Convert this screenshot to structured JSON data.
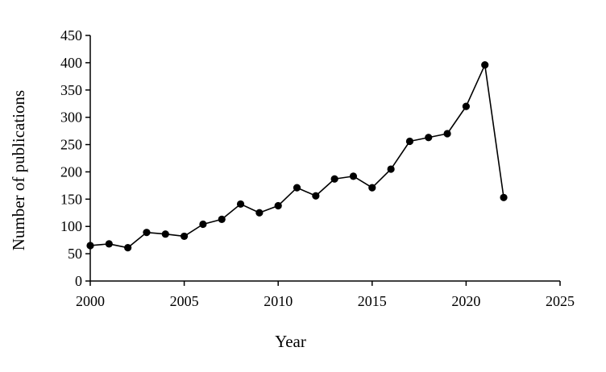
{
  "chart_data": {
    "type": "line",
    "title": "",
    "xlabel": "Year",
    "ylabel": "Number of publications",
    "xlim": [
      2000,
      2025
    ],
    "ylim": [
      0,
      450
    ],
    "x_ticks": [
      2000,
      2005,
      2010,
      2015,
      2020,
      2025
    ],
    "y_ticks": [
      0,
      50,
      100,
      150,
      200,
      250,
      300,
      350,
      400,
      450
    ],
    "grid": false,
    "legend": "none",
    "series": [
      {
        "color": "#000000",
        "marker": "circle",
        "x": [
          2000,
          2001,
          2002,
          2003,
          2004,
          2005,
          2006,
          2007,
          2008,
          2009,
          2010,
          2011,
          2012,
          2013,
          2014,
          2015,
          2016,
          2017,
          2018,
          2019,
          2020,
          2021,
          2022
        ],
        "y": [
          65,
          68,
          61,
          89,
          86,
          82,
          104,
          113,
          141,
          125,
          138,
          171,
          156,
          187,
          192,
          171,
          205,
          256,
          263,
          270,
          320,
          396,
          153
        ]
      }
    ]
  }
}
